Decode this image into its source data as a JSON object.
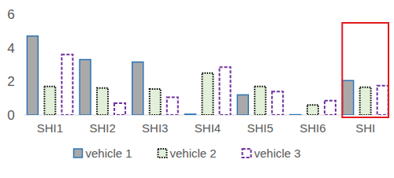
{
  "chart_data": {
    "type": "bar",
    "categories": [
      "SHI1",
      "SHI2",
      "SHI3",
      "SHI4",
      "SHI5",
      "SHI6",
      "SHI"
    ],
    "series": [
      {
        "name": "vehicle 1",
        "color": "#2e75b6",
        "line_style": "solid",
        "values": [
          4.7,
          3.3,
          3.15,
          0.05,
          1.2,
          0.02,
          2.05
        ]
      },
      {
        "name": "vehicle 2",
        "color": "#000000",
        "line_style": "dotted",
        "values": [
          1.7,
          1.6,
          1.55,
          2.5,
          1.7,
          0.6,
          1.65
        ]
      },
      {
        "name": "vehicle 3",
        "color": "#7030a0",
        "line_style": "dashed",
        "values": [
          3.6,
          0.7,
          1.05,
          2.85,
          1.4,
          0.85,
          1.75
        ]
      }
    ],
    "ylim": [
      0,
      6
    ],
    "yticks": [
      0,
      2,
      4,
      6
    ],
    "grid": false,
    "legend": "bottom"
  }
}
